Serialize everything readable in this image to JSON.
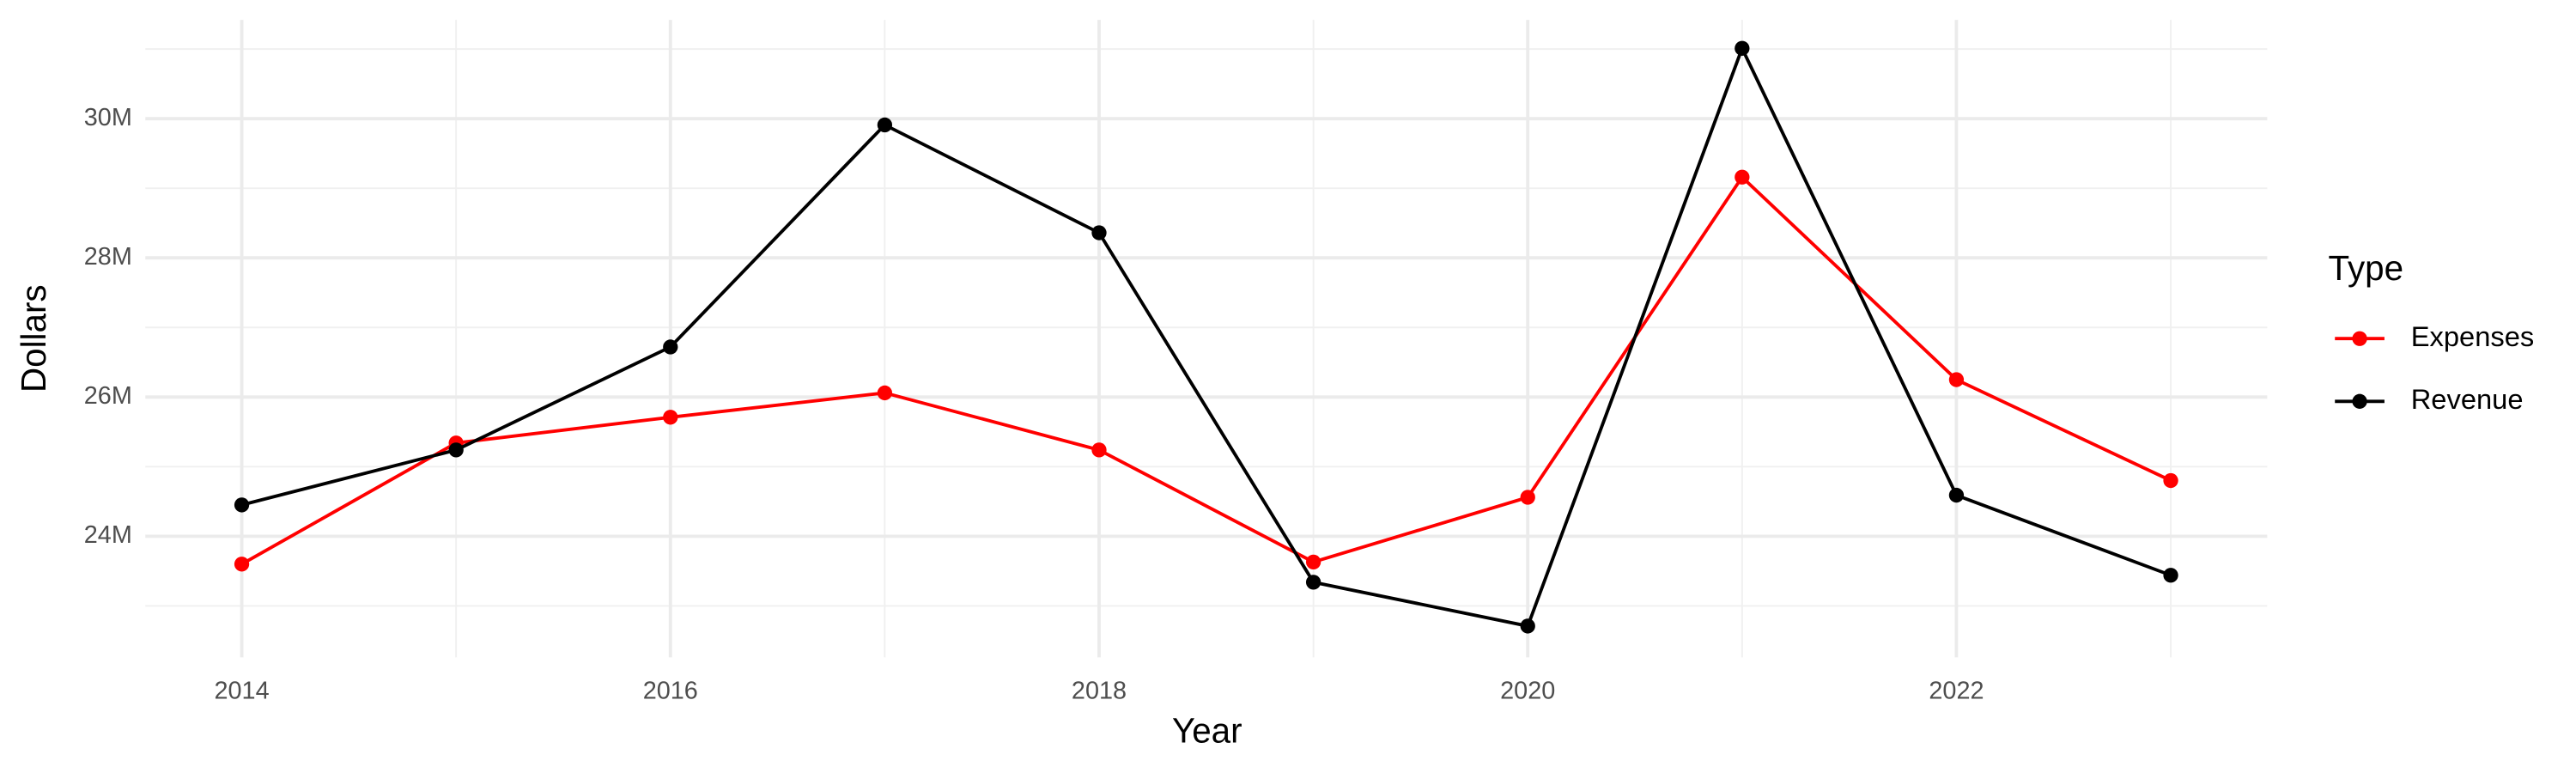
{
  "chart_data": {
    "type": "line",
    "x_label": "Year",
    "y_label": "Dollars",
    "legend_title": "Type",
    "legend_position": "right",
    "grid": true,
    "x": [
      2014,
      2015,
      2016,
      2017,
      2018,
      2019,
      2020,
      2021,
      2022,
      2023
    ],
    "series": [
      {
        "name": "Expenses",
        "color": "#ff0000",
        "values": [
          23600000,
          25340000,
          25710000,
          26060000,
          25240000,
          23630000,
          24560000,
          29160000,
          26250000,
          24800000
        ]
      },
      {
        "name": "Revenue",
        "color": "#000000",
        "values": [
          24450000,
          25240000,
          26720000,
          29910000,
          28360000,
          23340000,
          22710000,
          31010000,
          24590000,
          23440000
        ]
      }
    ],
    "xlim": [
      2013.55,
      2023.45
    ],
    "xticks": [
      2014,
      2016,
      2018,
      2020,
      2022
    ],
    "x_minor_ticks": [
      2015,
      2017,
      2019,
      2021,
      2023
    ],
    "ylim": [
      22260000,
      31420000
    ],
    "yticks": [
      {
        "value": 24000000,
        "label": "24M"
      },
      {
        "value": 26000000,
        "label": "26M"
      },
      {
        "value": 28000000,
        "label": "28M"
      },
      {
        "value": 30000000,
        "label": "30M"
      }
    ],
    "y_minor_ticks": [
      23000000,
      25000000,
      27000000,
      29000000,
      31000000
    ]
  }
}
